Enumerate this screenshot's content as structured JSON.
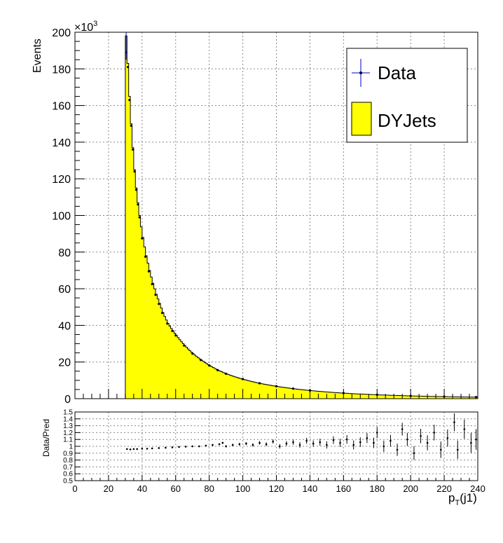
{
  "chart_data": [
    {
      "type": "area",
      "ylabel": "Events",
      "y_multiplier": "×10",
      "y_multiplier_exp": "3",
      "xlim": [
        0,
        240
      ],
      "ylim": [
        0,
        200
      ],
      "y_ticks": [
        0,
        20,
        40,
        60,
        80,
        100,
        120,
        140,
        160,
        180,
        200
      ],
      "x_ticks": [
        0,
        20,
        40,
        60,
        80,
        100,
        120,
        140,
        160,
        180,
        200,
        220,
        240
      ],
      "grid": true,
      "legend": {
        "placement": "top-right",
        "entries": [
          "Data",
          "DYJets"
        ]
      },
      "bin_width": 1,
      "series": [
        {
          "name": "DYJets",
          "kind": "filled-histogram",
          "fill": "#ffff00",
          "x": [
            30,
            31,
            32,
            33,
            34,
            35,
            36,
            37,
            38,
            40,
            42,
            44,
            46,
            48,
            50,
            52,
            55,
            58,
            60,
            65,
            70,
            75,
            80,
            85,
            90,
            100,
            110,
            120,
            130,
            140,
            160,
            180,
            200,
            220,
            240
          ],
          "y": [
            198,
            183,
            165,
            150,
            137,
            125,
            115,
            107,
            100,
            88,
            78,
            70,
            63,
            57,
            52,
            47,
            41,
            37,
            34.5,
            29,
            24.5,
            21,
            18,
            15.5,
            13.5,
            10.5,
            8.3,
            6.7,
            5.4,
            4.4,
            3.0,
            2.1,
            1.5,
            1.1,
            0.8
          ]
        },
        {
          "name": "Data",
          "kind": "points-with-errors",
          "color": "#000000",
          "error_color": "#0000cc",
          "x": [
            30.5,
            31.5,
            32.5,
            33.5,
            34.5,
            35.5,
            36.5,
            37.5,
            38.5,
            40,
            42,
            44,
            46,
            48,
            50,
            52,
            55,
            58,
            60,
            65,
            70,
            75,
            80,
            85,
            90,
            100,
            110,
            120,
            130,
            140,
            160,
            180,
            200,
            220,
            239
          ],
          "y": [
            189,
            181,
            163,
            149,
            136,
            124,
            114,
            106,
            99,
            87.5,
            77.5,
            69.5,
            62.5,
            56.7,
            51.7,
            46.8,
            41,
            37,
            34.5,
            29,
            24.6,
            21.1,
            18.1,
            15.6,
            13.6,
            10.7,
            8.4,
            6.8,
            5.5,
            4.5,
            3.05,
            2.15,
            1.55,
            1.15,
            0.85
          ]
        }
      ]
    },
    {
      "type": "scatter",
      "ylabel": "Data/Pred",
      "xlabel": "p",
      "xlabel_sub": "T",
      "xlabel_tail": "(j1)",
      "xlim": [
        0,
        240
      ],
      "ylim": [
        0.5,
        1.5
      ],
      "y_ticks": [
        0.5,
        0.6,
        0.7,
        0.8,
        0.9,
        1,
        1.1,
        1.2,
        1.3,
        1.4,
        1.5
      ],
      "y_tick_labels": [
        "0.5",
        "0.6",
        "0.7",
        "0.8",
        "0.9",
        "1",
        "1.1",
        "1.2",
        "1.3",
        "1.4",
        "1.5"
      ],
      "x_ticks": [
        0,
        20,
        40,
        60,
        80,
        100,
        120,
        140,
        160,
        180,
        200,
        220,
        240
      ],
      "grid": true,
      "series": [
        {
          "name": "Data/Pred",
          "x": [
            31,
            33,
            35,
            37,
            40,
            43,
            46,
            50,
            54,
            58,
            62,
            66,
            70,
            74,
            78,
            82,
            86,
            88,
            90,
            94,
            98,
            102,
            106,
            110,
            114,
            118,
            122,
            126,
            130,
            134,
            138,
            142,
            146,
            150,
            154,
            158,
            162,
            166,
            170,
            174,
            178,
            180,
            184,
            188,
            192,
            195,
            198,
            202,
            206,
            210,
            214,
            218,
            222,
            226,
            228,
            232,
            236,
            239
          ],
          "y": [
            0.96,
            0.955,
            0.96,
            0.96,
            0.965,
            0.965,
            0.97,
            0.975,
            0.98,
            0.985,
            0.99,
            0.995,
            1.0,
            1.0,
            1.01,
            1.02,
            1.03,
            1.05,
            1.0,
            1.02,
            1.03,
            1.04,
            1.02,
            1.05,
            1.03,
            1.07,
            1.0,
            1.04,
            1.06,
            1.02,
            1.08,
            1.04,
            1.06,
            1.02,
            1.09,
            1.05,
            1.1,
            1.02,
            1.06,
            1.12,
            1.05,
            1.2,
            1.0,
            1.08,
            0.95,
            1.25,
            1.1,
            0.9,
            1.15,
            1.05,
            1.2,
            0.95,
            1.12,
            1.35,
            0.95,
            1.25,
            1.05,
            1.1
          ],
          "err": [
            0.005,
            0.005,
            0.005,
            0.005,
            0.005,
            0.005,
            0.006,
            0.006,
            0.007,
            0.008,
            0.009,
            0.01,
            0.011,
            0.012,
            0.013,
            0.014,
            0.015,
            0.016,
            0.017,
            0.018,
            0.02,
            0.022,
            0.024,
            0.026,
            0.028,
            0.03,
            0.033,
            0.036,
            0.038,
            0.04,
            0.043,
            0.046,
            0.05,
            0.053,
            0.056,
            0.06,
            0.063,
            0.066,
            0.07,
            0.073,
            0.076,
            0.08,
            0.083,
            0.086,
            0.09,
            0.093,
            0.096,
            0.1,
            0.105,
            0.11,
            0.115,
            0.12,
            0.125,
            0.13,
            0.135,
            0.14,
            0.145,
            0.15
          ]
        }
      ]
    }
  ]
}
